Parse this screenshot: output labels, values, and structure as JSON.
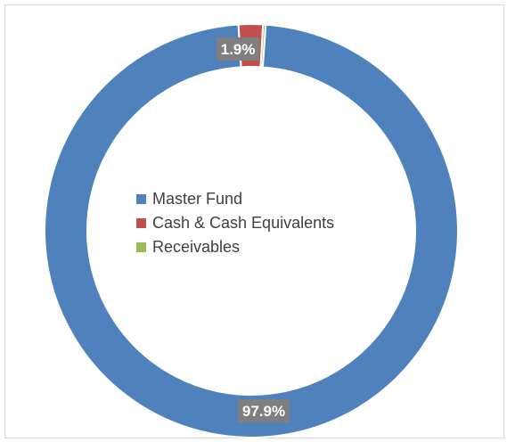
{
  "chart_data": {
    "type": "donut",
    "title": "",
    "slices": [
      {
        "label": "Master Fund",
        "value": 97.9,
        "display": "97.9%",
        "color": "#4f81bd"
      },
      {
        "label": "Cash & Cash Equivalents",
        "value": 1.9,
        "display": "1.9%",
        "color": "#c0504d"
      },
      {
        "label": "Receivables",
        "value": 0.2,
        "display": "",
        "color": "#9bbb59"
      }
    ],
    "legend": {
      "position": "center",
      "items": [
        "Master Fund",
        "Cash & Cash Equivalents",
        "Receivables"
      ]
    },
    "label_background": "#7f7f7f",
    "label_color": "#ffffff"
  }
}
